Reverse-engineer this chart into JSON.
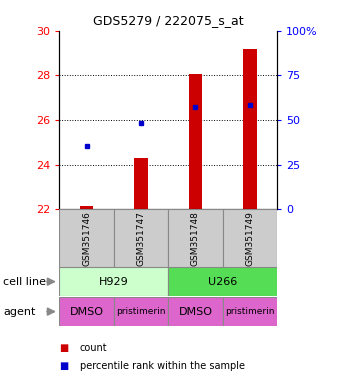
{
  "title": "GDS5279 / 222075_s_at",
  "samples": [
    "GSM351746",
    "GSM351747",
    "GSM351748",
    "GSM351749"
  ],
  "ylim_left": [
    22,
    30
  ],
  "ylim_right": [
    0,
    100
  ],
  "yticks_left": [
    22,
    24,
    26,
    28,
    30
  ],
  "yticks_right": [
    0,
    25,
    50,
    75,
    100
  ],
  "bar_bottoms": [
    22,
    22,
    22,
    22
  ],
  "bar_tops": [
    22.15,
    24.3,
    28.05,
    29.2
  ],
  "bar_color": "#cc0000",
  "dot_values": [
    24.85,
    25.85,
    26.6,
    26.65
  ],
  "dot_color": "#0000cc",
  "dotted_lines": [
    24,
    26,
    28
  ],
  "cell_line_labels": [
    "H929",
    "U266"
  ],
  "cell_line_spans": [
    [
      0,
      1
    ],
    [
      2,
      3
    ]
  ],
  "cell_line_colors": [
    "#ccffcc",
    "#55dd55"
  ],
  "agent_labels": [
    "DMSO",
    "pristimerin",
    "DMSO",
    "pristimerin"
  ],
  "agent_color": "#dd66cc",
  "legend_count_color": "#cc0000",
  "legend_pct_color": "#0000cc",
  "bg_color": "#ffffff",
  "sample_box_color": "#cccccc",
  "bar_width": 0.25
}
